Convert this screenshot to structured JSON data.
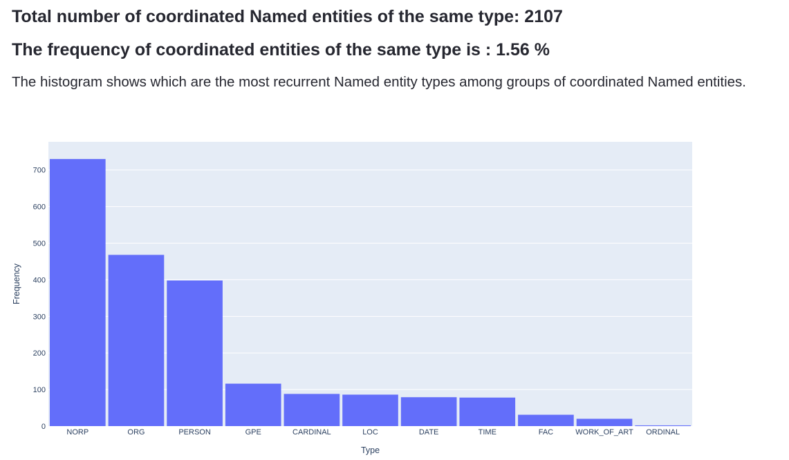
{
  "header": {
    "total_text": "Total number of coordinated Named entities of the same type: 2107",
    "frequency_text": "The frequency of coordinated entities of the same type is : 1.56 %",
    "description": "The histogram shows which are the most recurrent Named entity types among groups of coordinated Named entities."
  },
  "chart_data": {
    "type": "bar",
    "categories": [
      "NORP",
      "ORG",
      "PERSON",
      "GPE",
      "CARDINAL",
      "LOC",
      "DATE",
      "TIME",
      "FAC",
      "WORK_OF_ART",
      "ORDINAL"
    ],
    "values": [
      730,
      468,
      398,
      116,
      88,
      86,
      79,
      78,
      31,
      20,
      2
    ],
    "xlabel": "Type",
    "ylabel": "Frequency",
    "ylim": [
      0,
      777
    ],
    "yticks": [
      0,
      100,
      200,
      300,
      400,
      500,
      600,
      700
    ],
    "grid": true,
    "colors": {
      "bar": "#636efa",
      "plot_bg": "#e5ecf6",
      "grid": "#ffffff",
      "text": "#2a3f5f"
    }
  }
}
